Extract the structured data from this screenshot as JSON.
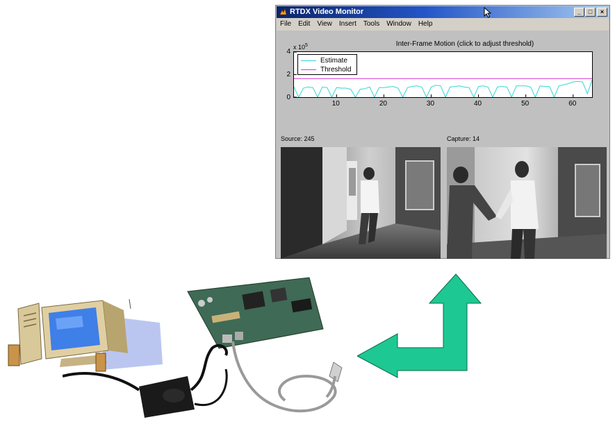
{
  "window": {
    "title": "RTDX Video Monitor",
    "controls": {
      "minimize": "_",
      "maximize": "□",
      "close": "×"
    }
  },
  "menu": [
    "File",
    "Edit",
    "View",
    "Insert",
    "Tools",
    "Window",
    "Help"
  ],
  "plot": {
    "title": "Inter-Frame Motion (click to adjust threshold)",
    "exponent_base": "x 10",
    "exponent_power": "5",
    "yticks": [
      "4",
      "2",
      "0"
    ],
    "xticks": [
      "10",
      "20",
      "30",
      "40",
      "50",
      "60"
    ],
    "legend": [
      {
        "label": "Estimate",
        "color": "#33d6d6"
      },
      {
        "label": "Threshold",
        "color": "#d633d6"
      }
    ]
  },
  "chart_data": {
    "type": "line",
    "xlim": [
      1,
      64
    ],
    "ylim": [
      0,
      4
    ],
    "y_scale_note": "x 10^5",
    "series": [
      {
        "name": "Threshold",
        "color": "#d633d6",
        "x": [
          1,
          64
        ],
        "y": [
          1.65,
          1.65
        ]
      },
      {
        "name": "Estimate",
        "color": "#33d6d6",
        "x": [
          1,
          2,
          3,
          4,
          5,
          6,
          7,
          8,
          9,
          10,
          11,
          12,
          13,
          14,
          15,
          16,
          17,
          18,
          19,
          20,
          21,
          22,
          23,
          24,
          25,
          26,
          27,
          28,
          29,
          30,
          31,
          32,
          33,
          34,
          35,
          36,
          37,
          38,
          39,
          40,
          41,
          42,
          43,
          44,
          45,
          46,
          47,
          48,
          49,
          50,
          51,
          52,
          53,
          54,
          55,
          56,
          57,
          58,
          59,
          60,
          61,
          62,
          63,
          64
        ],
        "y": [
          0.9,
          0,
          0.8,
          0.9,
          0.85,
          0,
          0.9,
          0.85,
          0,
          0.85,
          0.8,
          0.8,
          0.7,
          0,
          0.7,
          0.75,
          0.9,
          0,
          0.85,
          0.85,
          0.9,
          0.95,
          0.8,
          0,
          0.85,
          0.95,
          1.0,
          0.9,
          0,
          0.9,
          1.05,
          1.0,
          0,
          0.9,
          0.95,
          1.0,
          0.9,
          0.85,
          0,
          0.95,
          1.0,
          0.9,
          0,
          0.9,
          0.95,
          0.9,
          0,
          1.0,
          1.0,
          1.0,
          0.9,
          0,
          1.0,
          0.95,
          0.95,
          0,
          1.0,
          1.1,
          1.2,
          1.35,
          1.4,
          1.35,
          0.3,
          1.5
        ]
      }
    ]
  },
  "frames": {
    "source_label": "Source: 245",
    "capture_label": "Capture: 14"
  },
  "colors": {
    "arrow": "#1ec892",
    "title_bar": "#0a246a",
    "monitor_screen": "#3f7fe8"
  }
}
